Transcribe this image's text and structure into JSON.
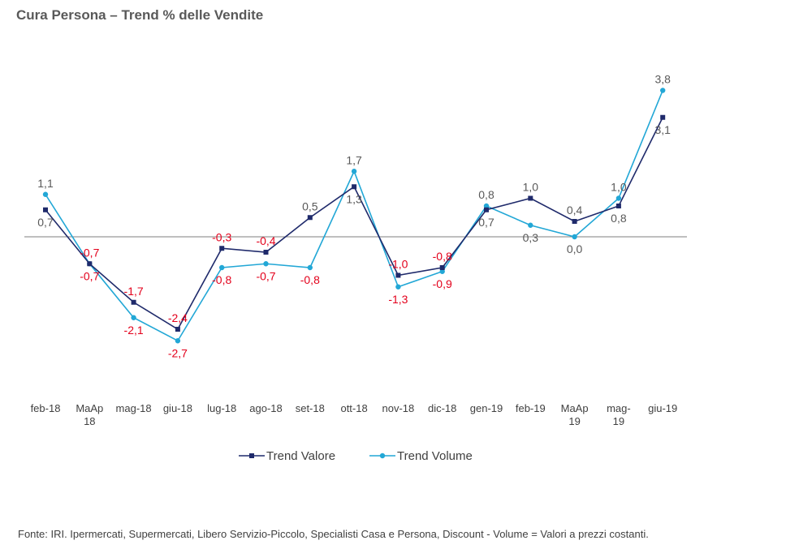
{
  "chart_data": {
    "type": "line",
    "title": "Cura Persona – Trend % delle Vendite",
    "categories": [
      [
        "feb-18"
      ],
      [
        "MaAp",
        "18"
      ],
      [
        "mag-18"
      ],
      [
        "giu-18"
      ],
      [
        "lug-18"
      ],
      [
        "ago-18"
      ],
      [
        "set-18"
      ],
      [
        "ott-18"
      ],
      [
        "nov-18"
      ],
      [
        "dic-18"
      ],
      [
        "gen-19"
      ],
      [
        "feb-19"
      ],
      [
        "MaAp",
        "19"
      ],
      [
        "mag-",
        "19"
      ],
      [
        "giu-19"
      ]
    ],
    "series": [
      {
        "name": "Trend Valore",
        "color": "#1f2a6b",
        "values": [
          0.7,
          -0.7,
          -1.7,
          -2.4,
          -0.3,
          -0.4,
          0.5,
          1.3,
          -1.0,
          -0.8,
          0.7,
          1.0,
          0.4,
          0.8,
          3.1
        ],
        "labels": [
          "0,7",
          "-0,7",
          "-1,7",
          "-2,4",
          "-0,3",
          "-0,4",
          "0,5",
          "1,3",
          "-1,0",
          "-0,8",
          "0,7",
          "1,0",
          "0,4",
          "0,8",
          "3,1"
        ]
      },
      {
        "name": "Trend Volume",
        "color": "#22a7d6",
        "values": [
          1.1,
          -0.7,
          -2.1,
          -2.7,
          -0.8,
          -0.7,
          -0.8,
          1.7,
          -1.3,
          -0.9,
          0.8,
          0.3,
          0.0,
          1.0,
          3.8
        ],
        "labels": [
          "1,1",
          "-0,7",
          "-2,1",
          "-2,7",
          "-0,8",
          "-0,7",
          "-0,8",
          "1,7",
          "-1,3",
          "-0,9",
          "0,8",
          "0,3",
          "0,0",
          "1,0",
          "3,8"
        ]
      }
    ],
    "ylim": [
      -4,
      4.3
    ],
    "grid": false,
    "legend": "bottom",
    "negative_label_color": "#e3001b",
    "positive_label_color": "#595959"
  },
  "footer": {
    "source": "Fonte: IRI. Ipermercati, Supermercati, Libero Servizio-Piccolo,  Specialisti Casa e Persona, Discount -  Volume =  Valori a prezzi  costanti."
  }
}
